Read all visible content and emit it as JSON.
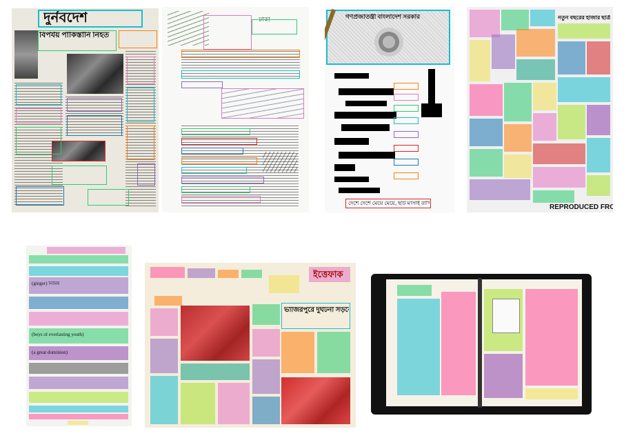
{
  "figure": {
    "panels": [
      {
        "id": "newspaper-1",
        "masthead": "দুর্নবদেশ",
        "headline": "বিপর্যয় পাকিস্তানি নিহত"
      },
      {
        "id": "handwritten-letter",
        "header_text": "ঢাকা"
      },
      {
        "id": "government-document",
        "masthead": "গণপ্রজাতন্ত্রী বাংলাদেশ সরকার",
        "footer_text": "দেশে দেশে মেয়ে মেয়ে, ছটি মাসাই রাখিই"
      },
      {
        "id": "newspaper-2",
        "headline": "নতুন বছরের হাজার ছাত্রী",
        "bottom_text": "REPRODUCED FRO"
      },
      {
        "id": "dictionary-page",
        "snippets": [
          "(ginger) নিমিষ",
          "(boys of everlasting youth)",
          "(a great dominion)"
        ]
      },
      {
        "id": "newspaper-3",
        "masthead": "ইত্তেফাক",
        "headline": "ভাজিরপুরে দুর্ঘটনা সড়কে নিহত ১২"
      },
      {
        "id": "open-book"
      }
    ]
  },
  "colors": {
    "green": "#2ecc71",
    "cyan": "#17becf",
    "magenta": "#e377c2",
    "orange": "#ff7f0e",
    "purple": "#9467bd",
    "blue": "#1f77b4",
    "red": "#d62728",
    "yellow": "#f1e05a",
    "pink": "#ff4f9a",
    "lime": "#a6e22e",
    "teal": "#16a085",
    "violet": "#8e44ad"
  }
}
